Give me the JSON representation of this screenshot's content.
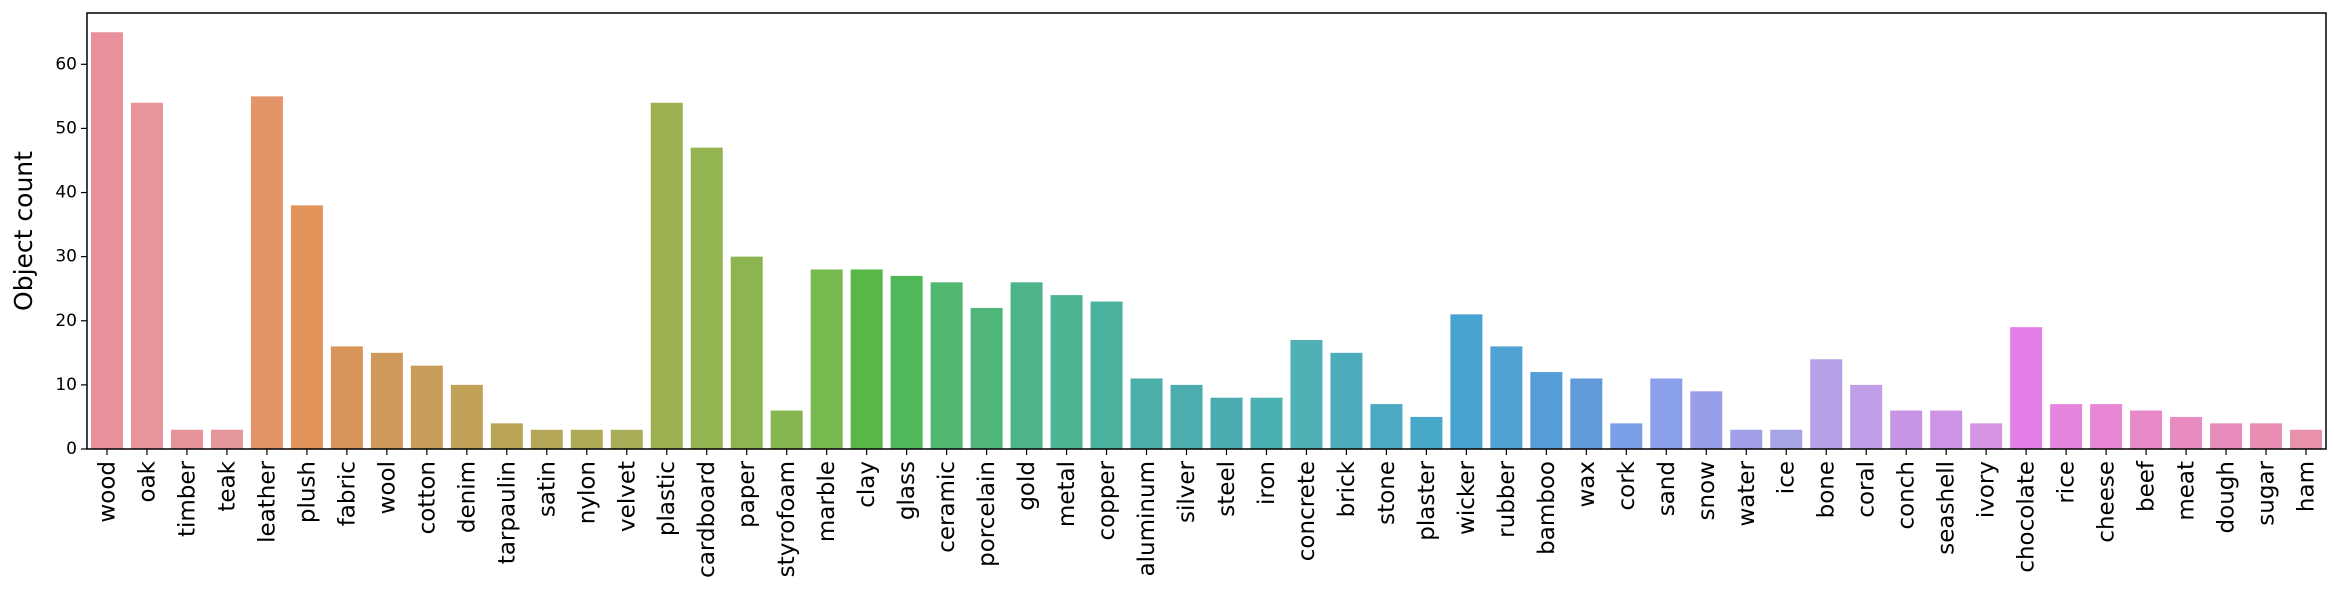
{
  "chart_data": {
    "type": "bar",
    "ylabel": "Object count",
    "xlabel": "",
    "ylim": [
      0,
      68
    ],
    "yticks": [
      0,
      10,
      20,
      30,
      40,
      50,
      60
    ],
    "grid": false,
    "categories": [
      "wood",
      "oak",
      "timber",
      "teak",
      "leather",
      "plush",
      "fabric",
      "wool",
      "cotton",
      "denim",
      "tarpaulin",
      "satin",
      "nylon",
      "velvet",
      "plastic",
      "cardboard",
      "paper",
      "styrofoam",
      "marble",
      "clay",
      "glass",
      "ceramic",
      "porcelain",
      "gold",
      "metal",
      "copper",
      "aluminum",
      "silver",
      "steel",
      "iron",
      "concrete",
      "brick",
      "stone",
      "plaster",
      "wicker",
      "rubber",
      "bamboo",
      "wax",
      "cork",
      "sand",
      "snow",
      "water",
      "ice",
      "bone",
      "coral",
      "conch",
      "seashell",
      "ivory",
      "chocolate",
      "rice",
      "cheese",
      "beef",
      "meat",
      "dough",
      "sugar",
      "ham"
    ],
    "values": [
      65,
      54,
      3,
      3,
      55,
      38,
      16,
      15,
      13,
      10,
      4,
      3,
      3,
      3,
      54,
      47,
      30,
      6,
      28,
      28,
      27,
      26,
      22,
      26,
      24,
      23,
      11,
      10,
      8,
      8,
      17,
      15,
      7,
      5,
      21,
      16,
      12,
      11,
      4,
      11,
      9,
      3,
      3,
      14,
      10,
      6,
      6,
      4,
      19,
      7,
      7,
      6,
      5,
      4,
      4,
      3
    ],
    "colors": [
      "#e9919b",
      "#e8949b",
      "#e6939a",
      "#e5969a",
      "#e49469",
      "#e2935a",
      "#d9945a",
      "#cf995b",
      "#c99d59",
      "#c2a057",
      "#baa557",
      "#b4a758",
      "#aeaa58",
      "#a8ad58",
      "#9db04f",
      "#93b451",
      "#8cb451",
      "#85b651",
      "#76b94e",
      "#57b845",
      "#51b85a",
      "#52b76e",
      "#50b578",
      "#4fb389",
      "#4cb393",
      "#4ab29d",
      "#4cafa8",
      "#4badad",
      "#4aacb1",
      "#4bb0b2",
      "#4fb0b5",
      "#4cacbb",
      "#4ca9c3",
      "#48a8c8",
      "#47a3cf",
      "#50a1d4",
      "#569dd8",
      "#619ad9",
      "#7b9fe6",
      "#8aa0ea",
      "#999ee9",
      "#a2a0e9",
      "#a5a5e6",
      "#b7a1e6",
      "#c09ee8",
      "#c895e6",
      "#cd94e5",
      "#d693e4",
      "#e27ee6",
      "#e484de",
      "#e786d2",
      "#e88ac9",
      "#e88bc0",
      "#e78cba",
      "#e88cb2",
      "#e991ab"
    ]
  }
}
